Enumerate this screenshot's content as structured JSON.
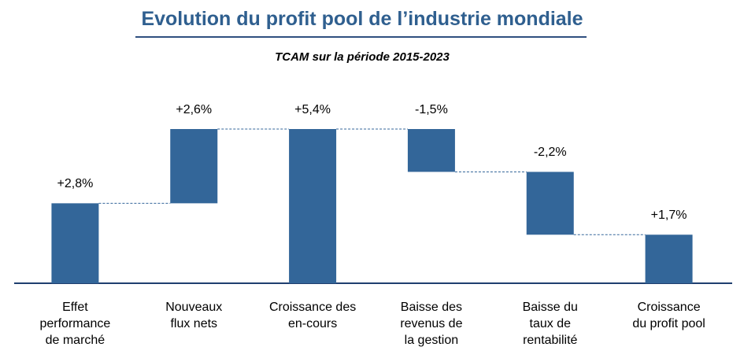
{
  "chart_data": {
    "type": "waterfall",
    "title": "Evolution du profit pool de l’industrie mondiale",
    "subtitle": "TCAM sur la période 2015-2023",
    "categories": [
      "Effet\nperformance\nde marché",
      "Nouveaux\nflux nets",
      "Croissance des\nen-cours",
      "Baisse des\nrevenus de\nla gestion",
      "Baisse du\ntaux de\nrentabilité",
      "Croissance\ndu profit pool"
    ],
    "values": [
      2.8,
      2.6,
      5.4,
      -1.5,
      -2.2,
      1.7
    ],
    "value_labels": [
      "+2,8%",
      "+2,6%",
      "+5,4%",
      "-1,5%",
      "-2,2%",
      "+1,7%"
    ],
    "totals": [
      false,
      false,
      true,
      false,
      false,
      true
    ],
    "color": "#336699"
  }
}
